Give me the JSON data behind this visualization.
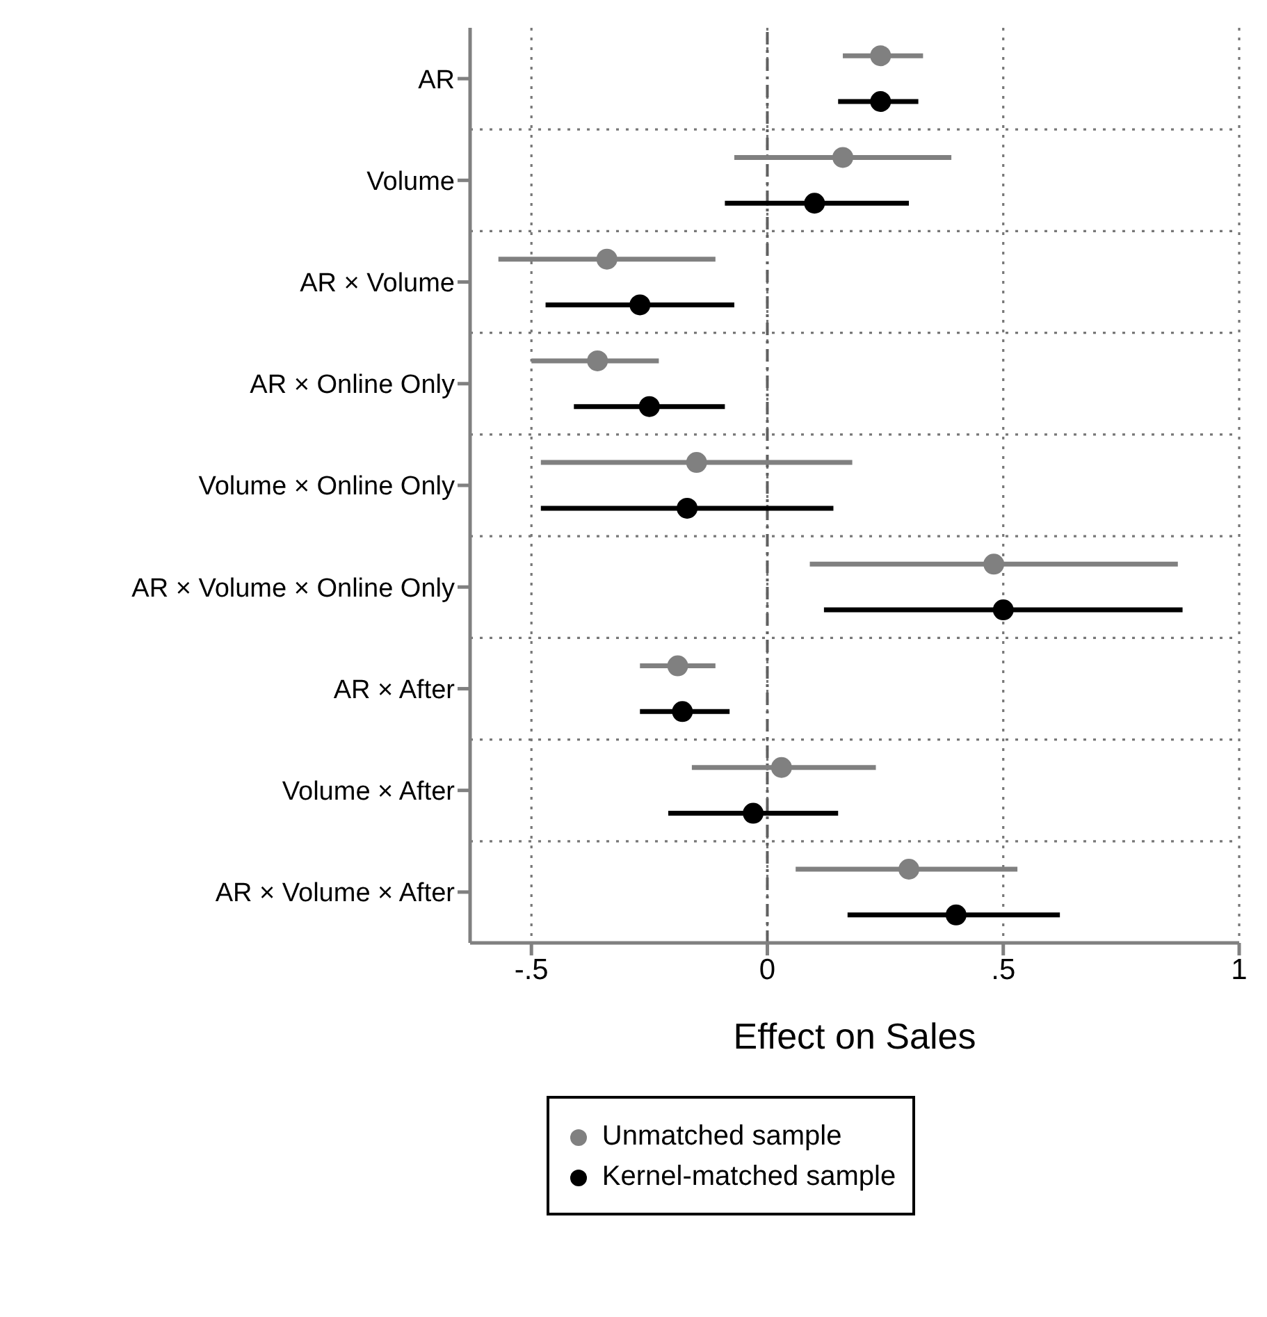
{
  "chart_data": {
    "type": "scatter",
    "orientation": "horizontal",
    "xlabel": "Effect on Sales",
    "categories": [
      "AR",
      "Volume",
      "AR × Volume",
      "AR × Online Only",
      "Volume × Online Only",
      "AR × Volume × Online Only",
      "AR × After",
      "Volume × After",
      "AR × Volume × After"
    ],
    "series": [
      {
        "name": "Unmatched sample",
        "color": "#808080",
        "values": [
          0.24,
          0.16,
          -0.34,
          -0.36,
          -0.15,
          0.48,
          -0.19,
          0.03,
          0.3
        ],
        "errors": [
          [
            0.16,
            0.33
          ],
          [
            -0.07,
            0.39
          ],
          [
            -0.57,
            -0.11
          ],
          [
            -0.5,
            -0.23
          ],
          [
            -0.48,
            0.18
          ],
          [
            0.09,
            0.87
          ],
          [
            -0.27,
            -0.11
          ],
          [
            -0.16,
            0.23
          ],
          [
            0.06,
            0.53
          ]
        ]
      },
      {
        "name": "Kernel-matched sample",
        "color": "#000000",
        "values": [
          0.24,
          0.1,
          -0.27,
          -0.25,
          -0.17,
          0.5,
          -0.18,
          -0.03,
          0.4
        ],
        "errors": [
          [
            0.15,
            0.32
          ],
          [
            -0.09,
            0.3
          ],
          [
            -0.47,
            -0.07
          ],
          [
            -0.41,
            -0.09
          ],
          [
            -0.48,
            0.14
          ],
          [
            0.12,
            0.88
          ],
          [
            -0.27,
            -0.08
          ],
          [
            -0.21,
            0.15
          ],
          [
            0.17,
            0.62
          ]
        ]
      }
    ],
    "xlim": [
      -0.63,
      1.0
    ],
    "xticks": [
      {
        "value": -0.5,
        "label": "-.5"
      },
      0,
      {
        "value": 0.5,
        "label": ".5"
      },
      1
    ],
    "ref_lines": [
      {
        "axis": "x",
        "value": 0,
        "color": "#606060",
        "line_style": "dashed"
      }
    ],
    "grid": true,
    "legend": "bottom",
    "marker": "circle"
  }
}
